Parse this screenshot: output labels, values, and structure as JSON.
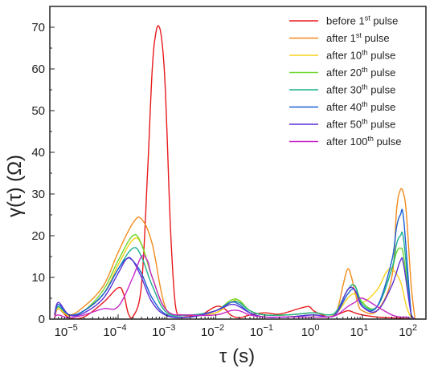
{
  "chart_data": {
    "type": "line",
    "title": "",
    "xlabel": "τ (s)",
    "ylabel": "γ(τ) (Ω)",
    "x_scale": "log",
    "xlim": [
      4e-06,
      200
    ],
    "ylim": [
      0,
      75
    ],
    "x_ticks": [
      {
        "value": 1e-05,
        "base": "10",
        "exp": "−5"
      },
      {
        "value": 0.0001,
        "base": "10",
        "exp": "−4"
      },
      {
        "value": 0.001,
        "base": "10",
        "exp": "−3"
      },
      {
        "value": 0.01,
        "base": "10",
        "exp": "−2"
      },
      {
        "value": 0.1,
        "base": "10",
        "exp": "−1"
      },
      {
        "value": 1,
        "base": "10",
        "exp": "0"
      },
      {
        "value": 10,
        "base": "10",
        "exp": "1"
      },
      {
        "value": 100,
        "base": "10",
        "exp": "2"
      }
    ],
    "y_ticks": [
      {
        "value": 0,
        "label": "0"
      },
      {
        "value": 10,
        "label": "10"
      },
      {
        "value": 20,
        "label": "20"
      },
      {
        "value": 30,
        "label": "30"
      },
      {
        "value": 40,
        "label": "40"
      },
      {
        "value": 50,
        "label": "50"
      },
      {
        "value": 60,
        "label": "60"
      },
      {
        "value": 70,
        "label": "70"
      }
    ],
    "grid": false,
    "legend_position": "top-right",
    "series": [
      {
        "name_pre": "before 1",
        "name_sup": "st",
        "name_post": " pulse",
        "color": "#e8191c",
        "x": [
          5e-06,
          6e-06,
          1e-05,
          2e-05,
          5e-05,
          0.0001,
          0.00013,
          0.00016,
          0.0002,
          0.0003,
          0.0004,
          0.0005,
          0.0006,
          0.0007,
          0.0008,
          0.0009,
          0.001,
          0.0012,
          0.0015,
          0.002,
          0.003,
          0.005,
          0.01,
          0.015,
          0.02,
          0.03,
          0.05,
          0.1,
          0.2,
          0.5,
          0.8,
          1,
          1.5,
          2,
          3,
          5,
          7,
          10,
          20,
          40,
          60,
          80,
          100,
          150
        ],
        "y": [
          0.3,
          2.5,
          0.3,
          0.5,
          4,
          7.5,
          6,
          1.5,
          0.5,
          8,
          35,
          60,
          69,
          70,
          66,
          58,
          45,
          20,
          3,
          1,
          0.8,
          1,
          3,
          2.5,
          1,
          0.3,
          1,
          1.5,
          1.2,
          2.5,
          3,
          2,
          1,
          0.5,
          1,
          2,
          1.5,
          1,
          0.5,
          0.3,
          0.2,
          0.1,
          0,
          0
        ]
      },
      {
        "name_pre": "after 1",
        "name_sup": "st",
        "name_post": " pulse",
        "color": "#f28b1c",
        "x": [
          5e-06,
          6e-06,
          1e-05,
          2e-05,
          5e-05,
          0.0001,
          0.0002,
          0.0003,
          0.0005,
          0.001,
          0.003,
          0.01,
          0.02,
          0.03,
          0.05,
          0.1,
          0.3,
          1,
          2,
          3,
          4,
          5,
          6,
          8,
          10,
          20,
          40,
          50,
          60,
          70,
          80,
          100,
          120
        ],
        "y": [
          1,
          3,
          1,
          3,
          8,
          16,
          23,
          24,
          18,
          2,
          1,
          1.5,
          4,
          4,
          2,
          1,
          1,
          1.5,
          1,
          2,
          8,
          12,
          10,
          4,
          2,
          2,
          10,
          26,
          31,
          30,
          25,
          8,
          0
        ]
      },
      {
        "name_pre": "after 10",
        "name_sup": "th",
        "name_post": " pulse",
        "color": "#f5d21a",
        "x": [
          5e-06,
          6e-06,
          1e-05,
          2e-05,
          5e-05,
          0.0001,
          0.0002,
          0.0003,
          0.0005,
          0.001,
          0.003,
          0.01,
          0.02,
          0.03,
          0.05,
          0.1,
          0.3,
          1,
          2,
          3,
          5,
          7,
          10,
          20,
          30,
          40,
          60,
          80,
          100,
          120
        ],
        "y": [
          1,
          2.5,
          0.8,
          2,
          6,
          13,
          19,
          18,
          10,
          2,
          1,
          1.5,
          4,
          4.5,
          2,
          1,
          1,
          1.5,
          1,
          1.5,
          5,
          6,
          4,
          7,
          11,
          12,
          9,
          3,
          0.5,
          0
        ]
      },
      {
        "name_pre": "after 20",
        "name_sup": "th",
        "name_post": " pulse",
        "color": "#6fd62a",
        "x": [
          5e-06,
          6e-06,
          1e-05,
          2e-05,
          5e-05,
          0.0001,
          0.0002,
          0.0003,
          0.0005,
          0.001,
          0.003,
          0.01,
          0.02,
          0.03,
          0.05,
          0.1,
          0.3,
          1,
          2,
          3,
          5,
          7,
          10,
          20,
          40,
          50,
          60,
          70,
          100,
          120
        ],
        "y": [
          1,
          3,
          1,
          2,
          7,
          14,
          20,
          18,
          10,
          2,
          1,
          2,
          4.5,
          4.5,
          2,
          1,
          1,
          1.5,
          1,
          2,
          7,
          8,
          4,
          3,
          12,
          16,
          17,
          15,
          1,
          0
        ]
      },
      {
        "name_pre": "after 30",
        "name_sup": "th",
        "name_post": " pulse",
        "color": "#1cb08f",
        "x": [
          5e-06,
          6e-06,
          1e-05,
          2e-05,
          5e-05,
          0.0001,
          0.0002,
          0.0003,
          0.0005,
          0.001,
          0.003,
          0.01,
          0.02,
          0.03,
          0.05,
          0.1,
          0.3,
          1,
          2,
          3,
          5,
          7,
          10,
          20,
          40,
          50,
          60,
          70,
          100,
          120
        ],
        "y": [
          1,
          3,
          1,
          2,
          6,
          12,
          17,
          15,
          8,
          1.5,
          1,
          2,
          4,
          4,
          2,
          1,
          1,
          1.5,
          1,
          2,
          7,
          8,
          3.5,
          3,
          12,
          18,
          20,
          19,
          1,
          0
        ]
      },
      {
        "name_pre": "after 40",
        "name_sup": "th",
        "name_post": " pulse",
        "color": "#1a5fd4",
        "x": [
          5e-06,
          6e-06,
          1e-05,
          2e-05,
          5e-05,
          0.0001,
          0.00015,
          0.0002,
          0.0003,
          0.0005,
          0.001,
          0.003,
          0.01,
          0.02,
          0.03,
          0.05,
          0.1,
          0.3,
          1,
          2,
          3,
          5,
          7,
          10,
          20,
          40,
          50,
          60,
          70,
          100,
          120
        ],
        "y": [
          1,
          3.5,
          1,
          2,
          6,
          12,
          14.5,
          14,
          11,
          5,
          1,
          0.5,
          2,
          4,
          3.5,
          1.5,
          0.5,
          0.5,
          1,
          0.5,
          1.5,
          6,
          7,
          3,
          3,
          14,
          22,
          25,
          24,
          1,
          0
        ]
      },
      {
        "name_pre": "after 50",
        "name_sup": "th",
        "name_post": " pulse",
        "color": "#5c2fd6",
        "x": [
          5e-06,
          6e-06,
          1e-05,
          2e-05,
          5e-05,
          0.0001,
          0.00015,
          0.0002,
          0.0003,
          0.0005,
          0.001,
          0.003,
          0.01,
          0.02,
          0.03,
          0.05,
          0.1,
          0.3,
          1,
          2,
          3,
          5,
          7,
          10,
          20,
          40,
          60,
          70,
          100,
          120
        ],
        "y": [
          1,
          4,
          1,
          1.5,
          5,
          11,
          14.5,
          14,
          10,
          4,
          0.8,
          0.5,
          2,
          3.5,
          3,
          1.5,
          0.5,
          0.5,
          1,
          0.5,
          1.5,
          7,
          7,
          3,
          2,
          8,
          14,
          13,
          1,
          0
        ]
      },
      {
        "name_pre": "after 100",
        "name_sup": "th",
        "name_post": " pulse",
        "color": "#c728c9",
        "x": [
          5e-06,
          6e-06,
          1e-05,
          2e-05,
          5e-05,
          0.0001,
          0.0002,
          0.0003,
          0.0004,
          0.0005,
          0.001,
          0.003,
          0.01,
          0.02,
          0.03,
          0.05,
          0.1,
          0.3,
          1,
          2,
          3,
          5,
          7,
          10,
          20,
          40,
          60,
          80,
          100,
          120
        ],
        "y": [
          0.5,
          1,
          0.3,
          1,
          2.5,
          3,
          10,
          15,
          14,
          10,
          2,
          1,
          1,
          2,
          2,
          1,
          0.5,
          0.5,
          0.5,
          0.5,
          1,
          3,
          4,
          5,
          3,
          1,
          0.5,
          0.5,
          0,
          0
        ]
      }
    ]
  }
}
